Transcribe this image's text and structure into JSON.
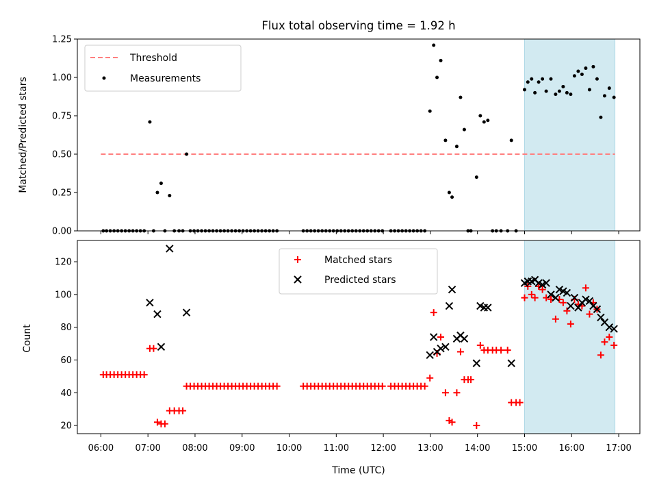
{
  "title": "Flux total observing time = 1.92 h",
  "x_axis": {
    "label": "Time (UTC)",
    "ticks": [
      "06:00",
      "07:00",
      "08:00",
      "09:00",
      "10:00",
      "11:00",
      "12:00",
      "13:00",
      "14:00",
      "15:00",
      "16:00",
      "17:00"
    ]
  },
  "colors": {
    "threshold": "#ff7f7f",
    "measurements": "#000000",
    "matched": "#ff0000",
    "predicted": "#000000",
    "highlight": "#add8e6"
  },
  "chart_data": [
    {
      "type": "scatter",
      "panel": "top",
      "ylabel": "Matched/Predicted stars",
      "ylim": [
        0,
        1.25
      ],
      "yticks": [
        "0.00",
        "0.25",
        "0.50",
        "0.75",
        "1.00",
        "1.25"
      ],
      "xlim_hours": [
        5.5,
        17.45
      ],
      "shaded_span_hours": [
        15.0,
        16.92
      ],
      "legend": {
        "placement": "upper left",
        "threshold_label": "Threshold",
        "measurements_label": "Measurements"
      },
      "threshold": {
        "y": 0.5,
        "x_range_hours": [
          6.0,
          16.92
        ]
      },
      "measurements": [
        [
          6.05,
          0
        ],
        [
          6.12,
          0
        ],
        [
          6.2,
          0
        ],
        [
          6.28,
          0
        ],
        [
          6.36,
          0
        ],
        [
          6.44,
          0
        ],
        [
          6.52,
          0
        ],
        [
          6.6,
          0
        ],
        [
          6.68,
          0
        ],
        [
          6.76,
          0
        ],
        [
          6.84,
          0
        ],
        [
          6.92,
          0
        ],
        [
          7.04,
          0.71
        ],
        [
          7.12,
          0
        ],
        [
          7.2,
          0.25
        ],
        [
          7.28,
          0.31
        ],
        [
          7.36,
          0
        ],
        [
          7.46,
          0.23
        ],
        [
          7.56,
          0
        ],
        [
          7.66,
          0
        ],
        [
          7.74,
          0
        ],
        [
          7.82,
          0.5
        ],
        [
          7.9,
          0
        ],
        [
          7.98,
          0
        ],
        [
          8.06,
          0
        ],
        [
          8.14,
          0
        ],
        [
          8.22,
          0
        ],
        [
          8.3,
          0
        ],
        [
          8.38,
          0
        ],
        [
          8.46,
          0
        ],
        [
          8.54,
          0
        ],
        [
          8.62,
          0
        ],
        [
          8.7,
          0
        ],
        [
          8.78,
          0
        ],
        [
          8.86,
          0
        ],
        [
          8.94,
          0
        ],
        [
          9.02,
          0
        ],
        [
          9.1,
          0
        ],
        [
          9.18,
          0
        ],
        [
          9.26,
          0
        ],
        [
          9.34,
          0
        ],
        [
          9.42,
          0
        ],
        [
          9.5,
          0
        ],
        [
          9.58,
          0
        ],
        [
          9.66,
          0
        ],
        [
          9.74,
          0
        ],
        [
          10.3,
          0
        ],
        [
          10.38,
          0
        ],
        [
          10.46,
          0
        ],
        [
          10.54,
          0
        ],
        [
          10.62,
          0
        ],
        [
          10.7,
          0
        ],
        [
          10.78,
          0
        ],
        [
          10.86,
          0
        ],
        [
          10.94,
          0
        ],
        [
          11.02,
          0
        ],
        [
          11.1,
          0
        ],
        [
          11.18,
          0
        ],
        [
          11.26,
          0
        ],
        [
          11.34,
          0
        ],
        [
          11.42,
          0
        ],
        [
          11.5,
          0
        ],
        [
          11.58,
          0
        ],
        [
          11.66,
          0
        ],
        [
          11.74,
          0
        ],
        [
          11.82,
          0
        ],
        [
          11.9,
          0
        ],
        [
          11.98,
          0
        ],
        [
          12.16,
          0
        ],
        [
          12.24,
          0
        ],
        [
          12.32,
          0
        ],
        [
          12.4,
          0
        ],
        [
          12.48,
          0
        ],
        [
          12.56,
          0
        ],
        [
          12.64,
          0
        ],
        [
          12.72,
          0
        ],
        [
          12.8,
          0
        ],
        [
          12.88,
          0
        ],
        [
          12.99,
          0.78
        ],
        [
          13.07,
          1.21
        ],
        [
          13.14,
          1.0
        ],
        [
          13.22,
          1.11
        ],
        [
          13.32,
          0.59
        ],
        [
          13.4,
          0.25
        ],
        [
          13.46,
          0.22
        ],
        [
          13.56,
          0.55
        ],
        [
          13.64,
          0.87
        ],
        [
          13.72,
          0.66
        ],
        [
          13.8,
          0
        ],
        [
          13.86,
          0
        ],
        [
          13.98,
          0.35
        ],
        [
          14.06,
          0.75
        ],
        [
          14.14,
          0.71
        ],
        [
          14.22,
          0.72
        ],
        [
          14.32,
          0
        ],
        [
          14.4,
          0
        ],
        [
          14.5,
          0
        ],
        [
          14.64,
          0
        ],
        [
          14.72,
          0.59
        ],
        [
          14.82,
          0
        ],
        [
          15.0,
          0.92
        ],
        [
          15.07,
          0.97
        ],
        [
          15.15,
          0.99
        ],
        [
          15.22,
          0.9
        ],
        [
          15.3,
          0.97
        ],
        [
          15.38,
          0.99
        ],
        [
          15.46,
          0.91
        ],
        [
          15.56,
          0.99
        ],
        [
          15.66,
          0.89
        ],
        [
          15.74,
          0.91
        ],
        [
          15.82,
          0.94
        ],
        [
          15.9,
          0.9
        ],
        [
          15.98,
          0.89
        ],
        [
          16.06,
          1.01
        ],
        [
          16.14,
          1.04
        ],
        [
          16.22,
          1.02
        ],
        [
          16.3,
          1.06
        ],
        [
          16.38,
          0.92
        ],
        [
          16.46,
          1.07
        ],
        [
          16.54,
          0.99
        ],
        [
          16.62,
          0.74
        ],
        [
          16.7,
          0.88
        ],
        [
          16.8,
          0.93
        ],
        [
          16.9,
          0.87
        ]
      ]
    },
    {
      "type": "scatter",
      "panel": "bottom",
      "ylabel": "Count",
      "ylim": [
        15,
        133
      ],
      "yticks": [
        "20",
        "40",
        "60",
        "80",
        "100",
        "120"
      ],
      "xlim_hours": [
        5.5,
        17.45
      ],
      "shaded_span_hours": [
        15.0,
        16.92
      ],
      "legend": {
        "placement": "upper center",
        "matched_label": "Matched stars",
        "predicted_label": "Predicted stars"
      },
      "series": [
        {
          "name": "Matched stars",
          "marker": "plus",
          "points": [
            [
              6.05,
              51
            ],
            [
              6.12,
              51
            ],
            [
              6.2,
              51
            ],
            [
              6.28,
              51
            ],
            [
              6.36,
              51
            ],
            [
              6.44,
              51
            ],
            [
              6.52,
              51
            ],
            [
              6.6,
              51
            ],
            [
              6.68,
              51
            ],
            [
              6.76,
              51
            ],
            [
              6.84,
              51
            ],
            [
              6.92,
              51
            ],
            [
              7.04,
              67
            ],
            [
              7.12,
              67
            ],
            [
              7.2,
              22
            ],
            [
              7.28,
              21
            ],
            [
              7.36,
              21
            ],
            [
              7.46,
              29
            ],
            [
              7.56,
              29
            ],
            [
              7.66,
              29
            ],
            [
              7.74,
              29
            ],
            [
              7.82,
              44
            ],
            [
              7.9,
              44
            ],
            [
              7.98,
              44
            ],
            [
              8.06,
              44
            ],
            [
              8.14,
              44
            ],
            [
              8.22,
              44
            ],
            [
              8.3,
              44
            ],
            [
              8.38,
              44
            ],
            [
              8.46,
              44
            ],
            [
              8.54,
              44
            ],
            [
              8.62,
              44
            ],
            [
              8.7,
              44
            ],
            [
              8.78,
              44
            ],
            [
              8.86,
              44
            ],
            [
              8.94,
              44
            ],
            [
              9.02,
              44
            ],
            [
              9.1,
              44
            ],
            [
              9.18,
              44
            ],
            [
              9.26,
              44
            ],
            [
              9.34,
              44
            ],
            [
              9.42,
              44
            ],
            [
              9.5,
              44
            ],
            [
              9.58,
              44
            ],
            [
              9.66,
              44
            ],
            [
              9.74,
              44
            ],
            [
              10.3,
              44
            ],
            [
              10.38,
              44
            ],
            [
              10.46,
              44
            ],
            [
              10.54,
              44
            ],
            [
              10.62,
              44
            ],
            [
              10.7,
              44
            ],
            [
              10.78,
              44
            ],
            [
              10.86,
              44
            ],
            [
              10.94,
              44
            ],
            [
              11.02,
              44
            ],
            [
              11.1,
              44
            ],
            [
              11.18,
              44
            ],
            [
              11.26,
              44
            ],
            [
              11.34,
              44
            ],
            [
              11.42,
              44
            ],
            [
              11.5,
              44
            ],
            [
              11.58,
              44
            ],
            [
              11.66,
              44
            ],
            [
              11.74,
              44
            ],
            [
              11.82,
              44
            ],
            [
              11.9,
              44
            ],
            [
              11.98,
              44
            ],
            [
              12.16,
              44
            ],
            [
              12.24,
              44
            ],
            [
              12.32,
              44
            ],
            [
              12.4,
              44
            ],
            [
              12.48,
              44
            ],
            [
              12.56,
              44
            ],
            [
              12.64,
              44
            ],
            [
              12.72,
              44
            ],
            [
              12.8,
              44
            ],
            [
              12.88,
              44
            ],
            [
              12.99,
              49
            ],
            [
              13.07,
              89
            ],
            [
              13.14,
              64
            ],
            [
              13.22,
              74
            ],
            [
              13.32,
              40
            ],
            [
              13.4,
              23
            ],
            [
              13.46,
              22
            ],
            [
              13.56,
              40
            ],
            [
              13.64,
              65
            ],
            [
              13.72,
              48
            ],
            [
              13.8,
              48
            ],
            [
              13.86,
              48
            ],
            [
              13.98,
              20
            ],
            [
              14.06,
              69
            ],
            [
              14.14,
              66
            ],
            [
              14.22,
              66
            ],
            [
              14.32,
              66
            ],
            [
              14.4,
              66
            ],
            [
              14.5,
              66
            ],
            [
              14.64,
              66
            ],
            [
              14.72,
              34
            ],
            [
              14.82,
              34
            ],
            [
              14.9,
              34
            ],
            [
              15.0,
              98
            ],
            [
              15.07,
              105
            ],
            [
              15.15,
              100
            ],
            [
              15.22,
              98
            ],
            [
              15.3,
              105
            ],
            [
              15.38,
              103
            ],
            [
              15.46,
              98
            ],
            [
              15.56,
              97
            ],
            [
              15.66,
              85
            ],
            [
              15.74,
              97
            ],
            [
              15.82,
              95
            ],
            [
              15.9,
              90
            ],
            [
              15.98,
              82
            ],
            [
              16.06,
              97
            ],
            [
              16.14,
              94
            ],
            [
              16.22,
              93
            ],
            [
              16.3,
              104
            ],
            [
              16.38,
              88
            ],
            [
              16.46,
              95
            ],
            [
              16.54,
              91
            ],
            [
              16.62,
              63
            ],
            [
              16.7,
              71
            ],
            [
              16.8,
              74
            ],
            [
              16.9,
              69
            ]
          ]
        },
        {
          "name": "Predicted stars",
          "marker": "x",
          "points": [
            [
              7.04,
              95
            ],
            [
              7.2,
              88
            ],
            [
              7.28,
              68
            ],
            [
              7.46,
              128
            ],
            [
              7.82,
              89
            ],
            [
              12.99,
              63
            ],
            [
              13.07,
              74
            ],
            [
              13.14,
              65
            ],
            [
              13.22,
              67
            ],
            [
              13.32,
              68
            ],
            [
              13.4,
              93
            ],
            [
              13.46,
              103
            ],
            [
              13.56,
              73
            ],
            [
              13.64,
              75
            ],
            [
              13.72,
              73
            ],
            [
              13.98,
              58
            ],
            [
              14.06,
              93
            ],
            [
              14.14,
              92
            ],
            [
              14.22,
              92
            ],
            [
              14.72,
              58
            ],
            [
              15.0,
              107
            ],
            [
              15.07,
              108
            ],
            [
              15.15,
              108
            ],
            [
              15.22,
              109
            ],
            [
              15.3,
              107
            ],
            [
              15.38,
              106
            ],
            [
              15.46,
              107
            ],
            [
              15.56,
              100
            ],
            [
              15.66,
              98
            ],
            [
              15.74,
              103
            ],
            [
              15.82,
              102
            ],
            [
              15.9,
              101
            ],
            [
              15.98,
              93
            ],
            [
              16.06,
              98
            ],
            [
              16.14,
              92
            ],
            [
              16.22,
              95
            ],
            [
              16.3,
              97
            ],
            [
              16.38,
              96
            ],
            [
              16.46,
              93
            ],
            [
              16.54,
              91
            ],
            [
              16.62,
              86
            ],
            [
              16.7,
              83
            ],
            [
              16.8,
              80
            ],
            [
              16.9,
              79
            ]
          ]
        }
      ]
    }
  ]
}
